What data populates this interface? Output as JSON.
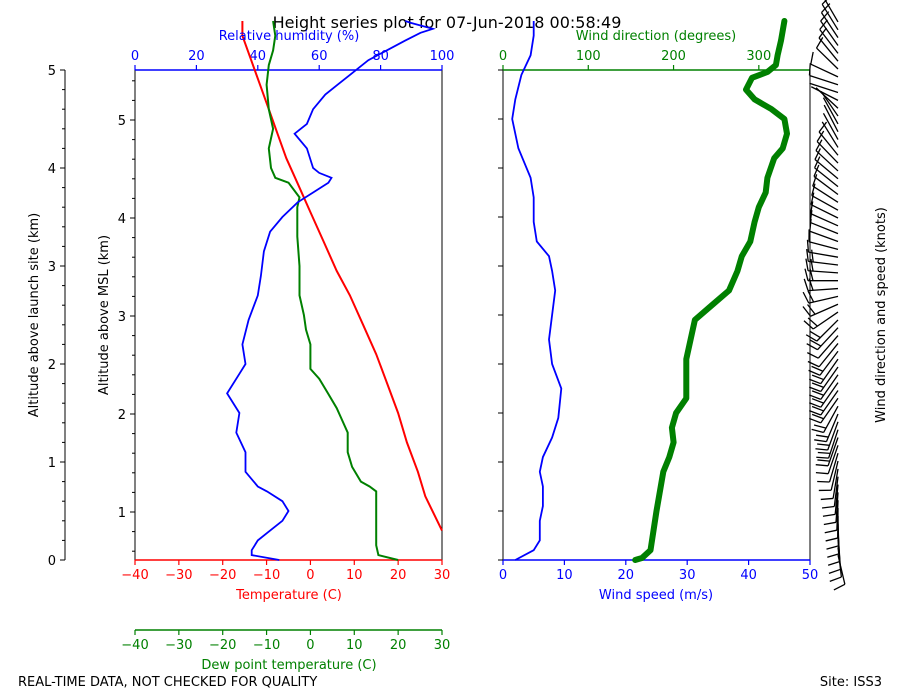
{
  "title": "Height series plot for 07-Jun-2018 00:58:49",
  "footer_left": "REAL-TIME DATA, NOT CHECKED FOR QUALITY",
  "footer_right": "Site: ISS3",
  "colors": {
    "temperature": "#ff0000",
    "dewpoint": "#008000",
    "humidity": "#0000ff",
    "wind_speed": "#0000ff",
    "wind_direction": "#008000",
    "barbs": "#000000"
  },
  "chart_data": [
    {
      "type": "line",
      "panel": "thermo",
      "ylabel_left": "Altitude above launch site (km)",
      "ylabel_inner": "Altitude above MSL (km)",
      "y_ticks_launch": [
        "0",
        "1",
        "2",
        "3",
        "4",
        "5"
      ],
      "y_ticks_msl": [
        "1",
        "2",
        "3",
        "4",
        "5"
      ],
      "ylim_launch": [
        0,
        5
      ],
      "axes": {
        "temperature": {
          "label": "Temperature (C)",
          "ticks": [
            "−40",
            "−30",
            "−20",
            "−10",
            "0",
            "10",
            "20",
            "30"
          ],
          "lim": [
            -40,
            30
          ]
        },
        "dewpoint": {
          "label": "Dew point temperature (C)",
          "ticks": [
            "−40",
            "−30",
            "−20",
            "−10",
            "0",
            "10",
            "20",
            "30"
          ],
          "lim": [
            -40,
            30
          ]
        },
        "humidity": {
          "label": "Relative humidity (%)",
          "ticks": [
            "0",
            "20",
            "40",
            "60",
            "80",
            "100"
          ],
          "lim": [
            0,
            100
          ]
        }
      },
      "series": [
        {
          "key": "temperature",
          "points": [
            [
              30,
              0.3
            ],
            [
              26.2,
              0.65
            ],
            [
              24.5,
              0.9
            ],
            [
              22,
              1.2
            ],
            [
              20,
              1.5
            ],
            [
              17.5,
              1.8
            ],
            [
              15,
              2.1
            ],
            [
              12,
              2.4
            ],
            [
              9,
              2.7
            ],
            [
              6,
              2.95
            ],
            [
              3,
              3.25
            ],
            [
              0,
              3.55
            ],
            [
              -3,
              3.85
            ],
            [
              -5.5,
              4.1
            ],
            [
              -7.5,
              4.35
            ],
            [
              -9.5,
              4.6
            ],
            [
              -11.5,
              4.85
            ],
            [
              -13.5,
              5.1
            ],
            [
              -15.5,
              5.35
            ],
            [
              -15.5,
              5.5
            ]
          ]
        },
        {
          "key": "dewpoint",
          "points": [
            [
              20,
              0
            ],
            [
              15.5,
              0.05
            ],
            [
              15,
              0.15
            ],
            [
              15,
              0.7
            ],
            [
              13.5,
              0.75
            ],
            [
              11.5,
              0.8
            ],
            [
              9.5,
              0.95
            ],
            [
              8.5,
              1.1
            ],
            [
              8.5,
              1.3
            ],
            [
              7,
              1.45
            ],
            [
              6,
              1.55
            ],
            [
              4,
              1.7
            ],
            [
              2,
              1.85
            ],
            [
              0,
              1.95
            ],
            [
              0,
              2.2
            ],
            [
              -1,
              2.35
            ],
            [
              -1.5,
              2.5
            ],
            [
              -2.5,
              2.7
            ],
            [
              -2.5,
              3.0
            ],
            [
              -3,
              3.3
            ],
            [
              -3,
              3.6
            ],
            [
              -2.5,
              3.7
            ],
            [
              -5,
              3.85
            ],
            [
              -8,
              3.9
            ],
            [
              -9,
              4.0
            ],
            [
              -9.5,
              4.2
            ],
            [
              -8.5,
              4.4
            ],
            [
              -9.5,
              4.6
            ],
            [
              -10,
              4.85
            ],
            [
              -9.5,
              5.05
            ],
            [
              -8.5,
              5.2
            ],
            [
              -8,
              5.35
            ],
            [
              -8.5,
              5.5
            ]
          ]
        },
        {
          "key": "humidity",
          "points": [
            [
              47,
              0
            ],
            [
              38,
              0.05
            ],
            [
              38,
              0.1
            ],
            [
              40,
              0.2
            ],
            [
              44,
              0.3
            ],
            [
              48,
              0.4
            ],
            [
              50,
              0.5
            ],
            [
              48,
              0.6
            ],
            [
              43,
              0.7
            ],
            [
              40,
              0.75
            ],
            [
              36,
              0.9
            ],
            [
              36,
              1.1
            ],
            [
              33,
              1.3
            ],
            [
              34,
              1.5
            ],
            [
              30,
              1.7
            ],
            [
              34,
              1.9
            ],
            [
              36,
              2.0
            ],
            [
              35,
              2.2
            ],
            [
              37,
              2.45
            ],
            [
              40,
              2.7
            ],
            [
              41,
              2.9
            ],
            [
              42,
              3.15
            ],
            [
              44,
              3.35
            ],
            [
              48,
              3.5
            ],
            [
              53,
              3.65
            ],
            [
              58,
              3.75
            ],
            [
              63,
              3.85
            ],
            [
              64,
              3.9
            ],
            [
              60,
              3.95
            ],
            [
              58,
              4.0
            ],
            [
              56,
              4.2
            ],
            [
              52,
              4.35
            ],
            [
              56,
              4.45
            ],
            [
              58,
              4.6
            ],
            [
              62,
              4.75
            ],
            [
              66,
              4.85
            ],
            [
              70,
              4.95
            ],
            [
              76,
              5.1
            ],
            [
              82,
              5.2
            ],
            [
              88,
              5.3
            ],
            [
              93,
              5.38
            ],
            [
              97,
              5.42
            ],
            [
              90,
              5.48
            ],
            [
              88,
              5.5
            ]
          ]
        }
      ]
    },
    {
      "type": "line",
      "panel": "wind",
      "ylabel_right": "Wind direction and speed (knots)",
      "ylim": [
        0,
        5.5
      ],
      "axes": {
        "wind_speed": {
          "label": "Wind speed (m/s)",
          "ticks": [
            "0",
            "10",
            "20",
            "30",
            "40",
            "50"
          ],
          "lim": [
            0,
            50
          ]
        },
        "wind_direction": {
          "label": "Wind direction (degrees)",
          "ticks": [
            "0",
            "100",
            "200",
            "300"
          ],
          "lim": [
            0,
            360
          ]
        }
      },
      "series": [
        {
          "key": "wind_speed",
          "points": [
            [
              2,
              0
            ],
            [
              5,
              0.1
            ],
            [
              6,
              0.2
            ],
            [
              6,
              0.4
            ],
            [
              6.5,
              0.55
            ],
            [
              6.5,
              0.75
            ],
            [
              6,
              0.9
            ],
            [
              6.5,
              1.05
            ],
            [
              8,
              1.25
            ],
            [
              9,
              1.45
            ],
            [
              9.5,
              1.75
            ],
            [
              8,
              2.0
            ],
            [
              7.5,
              2.25
            ],
            [
              8,
              2.5
            ],
            [
              8.5,
              2.75
            ],
            [
              8,
              2.95
            ],
            [
              7.5,
              3.1
            ],
            [
              5.5,
              3.25
            ],
            [
              5,
              3.45
            ],
            [
              5,
              3.7
            ],
            [
              4.5,
              3.9
            ],
            [
              2.5,
              4.2
            ],
            [
              1.5,
              4.5
            ],
            [
              2,
              4.7
            ],
            [
              3,
              4.95
            ],
            [
              4.5,
              5.15
            ],
            [
              5,
              5.35
            ],
            [
              5,
              5.5
            ]
          ]
        },
        {
          "key": "wind_direction",
          "points": [
            [
              155,
              0
            ],
            [
              163,
              0.02
            ],
            [
              173,
              0.1
            ],
            [
              180,
              0.5
            ],
            [
              188,
              0.9
            ],
            [
              195,
              1.05
            ],
            [
              200,
              1.2
            ],
            [
              198,
              1.35
            ],
            [
              203,
              1.5
            ],
            [
              215,
              1.65
            ],
            [
              215,
              1.8
            ],
            [
              215,
              2.05
            ],
            [
              220,
              2.25
            ],
            [
              225,
              2.45
            ],
            [
              245,
              2.6
            ],
            [
              265,
              2.75
            ],
            [
              275,
              2.95
            ],
            [
              280,
              3.1
            ],
            [
              290,
              3.25
            ],
            [
              295,
              3.45
            ],
            [
              300,
              3.6
            ],
            [
              308,
              3.75
            ],
            [
              310,
              3.9
            ],
            [
              318,
              4.1
            ],
            [
              328,
              4.2
            ],
            [
              333,
              4.35
            ],
            [
              330,
              4.5
            ],
            [
              315,
              4.6
            ],
            [
              295,
              4.7
            ],
            [
              285,
              4.8
            ],
            [
              292,
              4.92
            ],
            [
              310,
              4.98
            ],
            [
              320,
              5.05
            ],
            [
              322,
              5.15
            ],
            [
              326,
              5.3
            ],
            [
              328,
              5.4
            ],
            [
              330,
              5.5
            ]
          ]
        }
      ]
    }
  ]
}
